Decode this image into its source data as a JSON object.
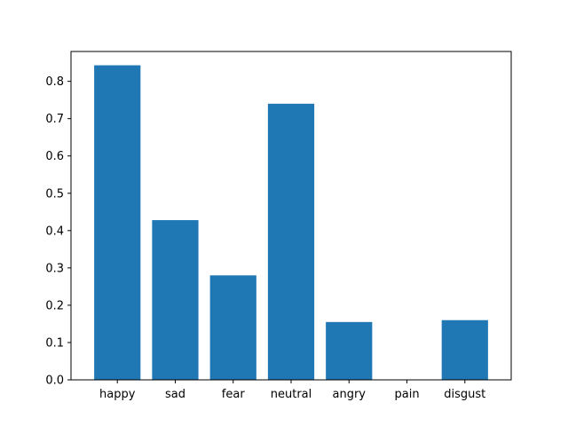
{
  "chart_data": {
    "type": "bar",
    "title": "",
    "xlabel": "",
    "ylabel": "",
    "categories": [
      "happy",
      "sad",
      "fear",
      "neutral",
      "angry",
      "pain",
      "disgust"
    ],
    "values": [
      0.843,
      0.428,
      0.28,
      0.74,
      0.155,
      0.0,
      0.16
    ],
    "ylim": [
      0,
      0.88
    ],
    "yticks": [
      0.0,
      0.1,
      0.2,
      0.3,
      0.4,
      0.5,
      0.6,
      0.7,
      0.8
    ],
    "ytick_labels": [
      "0.0",
      "0.1",
      "0.2",
      "0.3",
      "0.4",
      "0.5",
      "0.6",
      "0.7",
      "0.8"
    ],
    "bar_color": "#1f77b4",
    "grid": false,
    "legend": "none"
  }
}
